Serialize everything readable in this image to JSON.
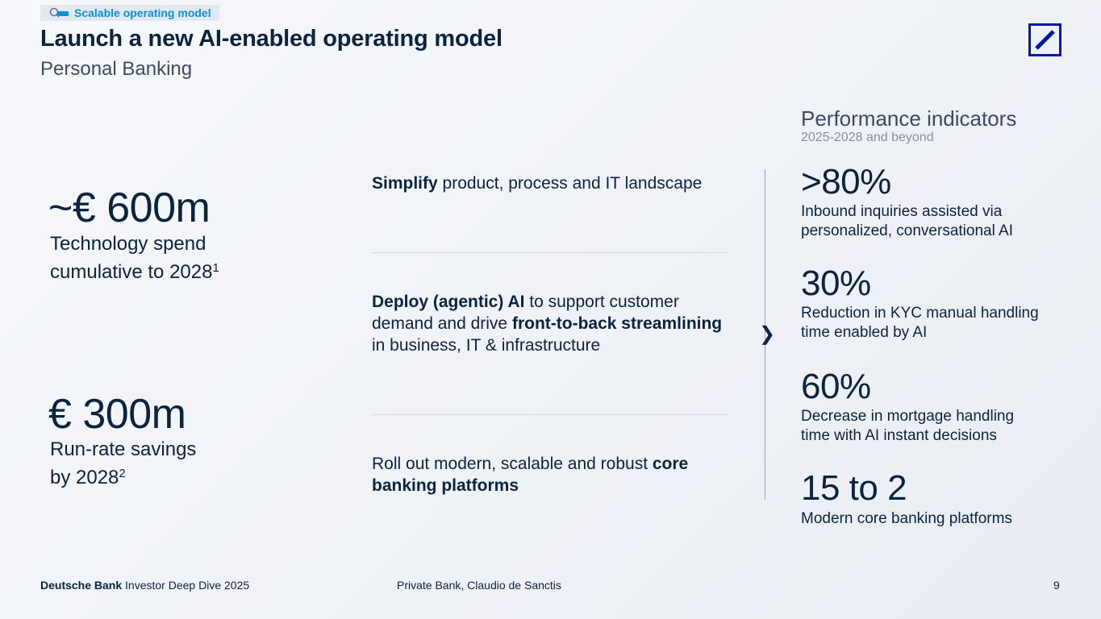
{
  "header": {
    "tag": "Scalable operating model",
    "title": "Launch a new AI-enabled operating model",
    "subtitle": "Personal Banking"
  },
  "left": {
    "metric1_value": "~€ 600m",
    "metric1_label_line1": "Technology spend",
    "metric1_label_line2": "cumulative to 2028",
    "metric1_footnote": "1",
    "metric2_value": "€ 300m",
    "metric2_label_line1": "Run-rate savings",
    "metric2_label_line2": "by 2028",
    "metric2_footnote": "2"
  },
  "middle": {
    "item1": {
      "bold1": "Simplify",
      "text1": " product, process and IT landscape"
    },
    "item2": {
      "bold1": "Deploy (agentic) AI",
      "text1": " to support customer demand and drive ",
      "bold2": "front-to-back streamlining",
      "text2": " in business, IT & infrastructure"
    },
    "item3": {
      "text1": "Roll out modern, scalable and robust ",
      "bold1": "core banking platforms"
    }
  },
  "performance": {
    "title": "Performance indicators",
    "period": "2025-2028 and beyond",
    "indicators": [
      {
        "value": ">80%",
        "description": "Inbound inquiries assisted via personalized, conversational AI"
      },
      {
        "value": "30%",
        "description": "Reduction in KYC manual handling time enabled by AI"
      },
      {
        "value": "60%",
        "description": "Decrease in mortgage handling time with AI instant decisions"
      },
      {
        "value": "15 to 2",
        "description": "Modern core banking platforms"
      }
    ]
  },
  "footer": {
    "brand": "Deutsche Bank",
    "event": " Investor Deep Dive 2025",
    "presenter": "Private Bank, Claudio de Sanctis",
    "page_number": "9"
  },
  "colors": {
    "navy": "#0c2340",
    "accent": "#0a8fd8",
    "logo_blue": "#0018a8"
  }
}
